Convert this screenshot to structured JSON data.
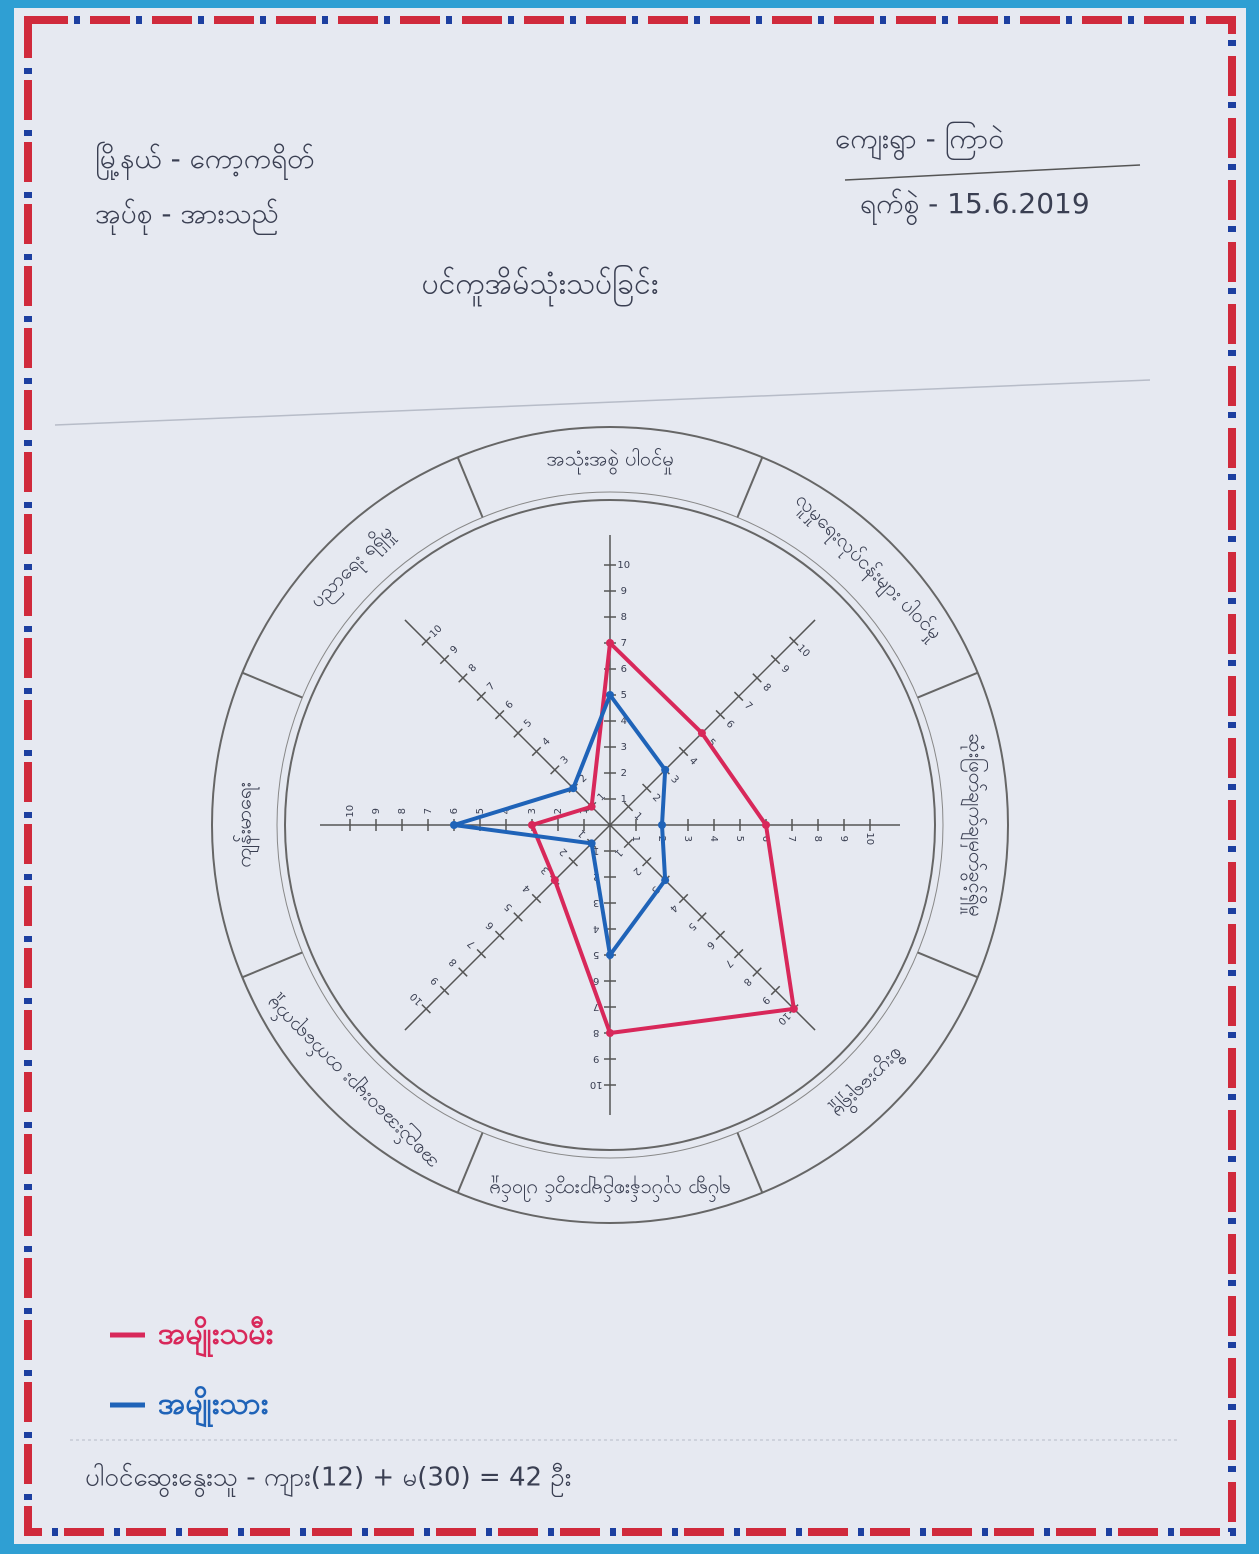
{
  "header": {
    "township": "မြို့နယ် - ကော့ကရိတ်",
    "group": "အုပ်စု - အားသည်",
    "village": "ကျေးရွာ - ကြာဝဲ",
    "date": "ရက်စွဲ - 15.6.2019"
  },
  "chart_data": {
    "type": "radar",
    "title": "ပင်ကူအိမ်သုံးသပ်ခြင်း",
    "categories": [
      "အသုံးအစွဲ ပါဝင်မှု",
      "လူမှုရေးလုပ်ငန်းများ ပါဝင်မှု",
      "ဆုံးဖြတ်ချက်ချမှတ်ခွင့်ရှိမှု",
      "စီးပွားရေးရှိမှု",
      "ရပ်ရွာ လုပ်ငန်းစဉ်များတွင် ပါဝင်မှု",
      "အစည်းအဝေးများ တက်ရောက်မှု",
      "ကျန်းမာရေး",
      "ပညာရေး ရရှိမှု"
    ],
    "series": [
      {
        "name": "အမျိုးသမီး",
        "color": "#d8285a",
        "values": [
          7,
          5,
          6,
          10,
          8,
          3,
          3,
          1
        ]
      },
      {
        "name": "အမျိုးသား",
        "color": "#1f63b8",
        "values": [
          5,
          3,
          2,
          3,
          5,
          1,
          6,
          2
        ]
      }
    ],
    "rlim": [
      0,
      10
    ],
    "rticks": [
      1,
      2,
      3,
      4,
      5,
      6,
      7,
      8,
      9,
      10
    ]
  },
  "footer": {
    "participants": "ပါဝင်ဆွေးနွေးသူ - ကျား(12) + မ(30) = 42 ဦး"
  }
}
